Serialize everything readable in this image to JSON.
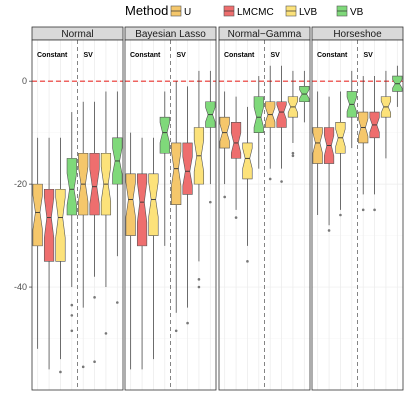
{
  "chart_data": {
    "type": "boxplot",
    "legend": {
      "title": "Method",
      "position": "top",
      "entries": [
        {
          "key": "U",
          "label": "U",
          "color": "#f5c76b"
        },
        {
          "key": "LMCMC",
          "label": "LMCMC",
          "color": "#ee6e6e"
        },
        {
          "key": "LVB",
          "label": "LVB",
          "color": "#fce27a"
        },
        {
          "key": "VB",
          "label": "VB",
          "color": "#7fd97a"
        }
      ]
    },
    "y_axis": {
      "ylim": [
        -60,
        8
      ],
      "ticks": [
        0,
        -20,
        -40
      ],
      "tick_labels": [
        "0",
        "-20",
        "-40"
      ],
      "grid": true
    },
    "reference_line": {
      "y": 0,
      "color": "#e8312c",
      "style": "dashed"
    },
    "group_labels": [
      "Constant",
      "SV"
    ],
    "panels": [
      {
        "strip": "Normal",
        "boxes": [
          {
            "group": "Constant",
            "method": "U",
            "q1": -32,
            "median": -25.5,
            "q3": -20,
            "lo": -52,
            "hi": -11,
            "outliers": []
          },
          {
            "group": "Constant",
            "method": "LMCMC",
            "q1": -35,
            "median": -26.5,
            "q3": -21,
            "lo": -56,
            "hi": -11,
            "outliers": []
          },
          {
            "group": "Constant",
            "method": "LVB",
            "q1": -35,
            "median": -26.5,
            "q3": -21,
            "lo": -54,
            "hi": -11,
            "outliers": [
              -56.5
            ]
          },
          {
            "group": "Constant",
            "method": "VB",
            "q1": -26,
            "median": -21,
            "q3": -15,
            "lo": -40,
            "hi": -6,
            "outliers": [
              -43.5,
              -45.5,
              -48.5
            ]
          },
          {
            "group": "SV",
            "method": "U",
            "q1": -26,
            "median": -20,
            "q3": -14,
            "lo": -44,
            "hi": -4,
            "outliers": [
              -55.5
            ]
          },
          {
            "group": "SV",
            "method": "LMCMC",
            "q1": -26,
            "median": -20.5,
            "q3": -14,
            "lo": -38,
            "hi": -4,
            "outliers": [
              -42,
              -54.5
            ]
          },
          {
            "group": "SV",
            "method": "LVB",
            "q1": -26,
            "median": -20,
            "q3": -14,
            "lo": -40,
            "hi": -2,
            "outliers": [
              -49
            ]
          },
          {
            "group": "SV",
            "method": "VB",
            "q1": -20,
            "median": -15.5,
            "q3": -11,
            "lo": -34,
            "hi": -2,
            "outliers": [
              -43
            ]
          }
        ]
      },
      {
        "strip": "Bayesian Lasso",
        "boxes": [
          {
            "group": "Constant",
            "method": "U",
            "q1": -30,
            "median": -23,
            "q3": -18,
            "lo": -56,
            "hi": -10,
            "outliers": []
          },
          {
            "group": "Constant",
            "method": "LMCMC",
            "q1": -32,
            "median": -23.5,
            "q3": -18,
            "lo": -56,
            "hi": -11,
            "outliers": []
          },
          {
            "group": "Constant",
            "method": "LVB",
            "q1": -30,
            "median": -23,
            "q3": -18,
            "lo": -54,
            "hi": -11,
            "outliers": []
          },
          {
            "group": "Constant",
            "method": "VB",
            "q1": -14,
            "median": -10,
            "q3": -7,
            "lo": -32,
            "hi": -2,
            "outliers": []
          },
          {
            "group": "SV",
            "method": "U",
            "q1": -24,
            "median": -17,
            "q3": -12,
            "lo": -45,
            "hi": 0,
            "outliers": [
              -48.5
            ]
          },
          {
            "group": "SV",
            "method": "LMCMC",
            "q1": -22,
            "median": -17.5,
            "q3": -12,
            "lo": -44,
            "hi": -1,
            "outliers": [
              -47
            ]
          },
          {
            "group": "SV",
            "method": "LVB",
            "q1": -20,
            "median": -14.5,
            "q3": -9,
            "lo": -35,
            "hi": 2,
            "outliers": [
              -38.5,
              -40
            ]
          },
          {
            "group": "SV",
            "method": "VB",
            "q1": -9,
            "median": -6.5,
            "q3": -4,
            "lo": -20,
            "hi": 2,
            "outliers": [
              -23.5
            ]
          }
        ]
      },
      {
        "strip": "Normal−Gamma",
        "boxes": [
          {
            "group": "Constant",
            "method": "U",
            "q1": -13,
            "median": -10,
            "q3": -7,
            "lo": -20,
            "hi": -2,
            "outliers": [
              -22.5
            ]
          },
          {
            "group": "Constant",
            "method": "LMCMC",
            "q1": -15,
            "median": -12,
            "q3": -8,
            "lo": -25,
            "hi": -3,
            "outliers": [
              -26.5
            ]
          },
          {
            "group": "Constant",
            "method": "LVB",
            "q1": -19,
            "median": -15,
            "q3": -12,
            "lo": -32,
            "hi": -5,
            "outliers": [
              -35
            ]
          },
          {
            "group": "Constant",
            "method": "VB",
            "q1": -10,
            "median": -7,
            "q3": -3,
            "lo": -17,
            "hi": 1,
            "outliers": []
          },
          {
            "group": "SV",
            "method": "U",
            "q1": -9,
            "median": -6.5,
            "q3": -4,
            "lo": -17,
            "hi": 3,
            "outliers": [
              -19
            ]
          },
          {
            "group": "SV",
            "method": "LMCMC",
            "q1": -9,
            "median": -6,
            "q3": -4,
            "lo": -17,
            "hi": 3,
            "outliers": [
              -19.5
            ]
          },
          {
            "group": "SV",
            "method": "LVB",
            "q1": -7,
            "median": -5,
            "q3": -3,
            "lo": -12,
            "hi": 2,
            "outliers": [
              -14,
              -14.5
            ]
          },
          {
            "group": "SV",
            "method": "VB",
            "q1": -4,
            "median": -2.5,
            "q3": -1,
            "lo": -8,
            "hi": 2,
            "outliers": []
          }
        ]
      },
      {
        "strip": "Horseshoe",
        "boxes": [
          {
            "group": "Constant",
            "method": "U",
            "q1": -16,
            "median": -12,
            "q3": -9,
            "lo": -26,
            "hi": -2,
            "outliers": []
          },
          {
            "group": "Constant",
            "method": "LMCMC",
            "q1": -16,
            "median": -12.5,
            "q3": -9,
            "lo": -28,
            "hi": -3,
            "outliers": [
              -29
            ]
          },
          {
            "group": "Constant",
            "method": "LVB",
            "q1": -14,
            "median": -11,
            "q3": -8,
            "lo": -25,
            "hi": -2,
            "outliers": [
              -26
            ]
          },
          {
            "group": "Constant",
            "method": "VB",
            "q1": -7,
            "median": -4.5,
            "q3": -2,
            "lo": -13,
            "hi": 2,
            "outliers": []
          },
          {
            "group": "SV",
            "method": "U",
            "q1": -12,
            "median": -9,
            "q3": -6,
            "lo": -22,
            "hi": 1,
            "outliers": [
              -25
            ]
          },
          {
            "group": "SV",
            "method": "LMCMC",
            "q1": -11,
            "median": -8.5,
            "q3": -6,
            "lo": -22,
            "hi": 1,
            "outliers": [
              -25
            ]
          },
          {
            "group": "SV",
            "method": "LVB",
            "q1": -7,
            "median": -5,
            "q3": -3,
            "lo": -15,
            "hi": 2,
            "outliers": []
          },
          {
            "group": "SV",
            "method": "VB",
            "q1": -2,
            "median": -0.5,
            "q3": 1,
            "lo": -5,
            "hi": 3,
            "outliers": []
          }
        ]
      }
    ]
  }
}
